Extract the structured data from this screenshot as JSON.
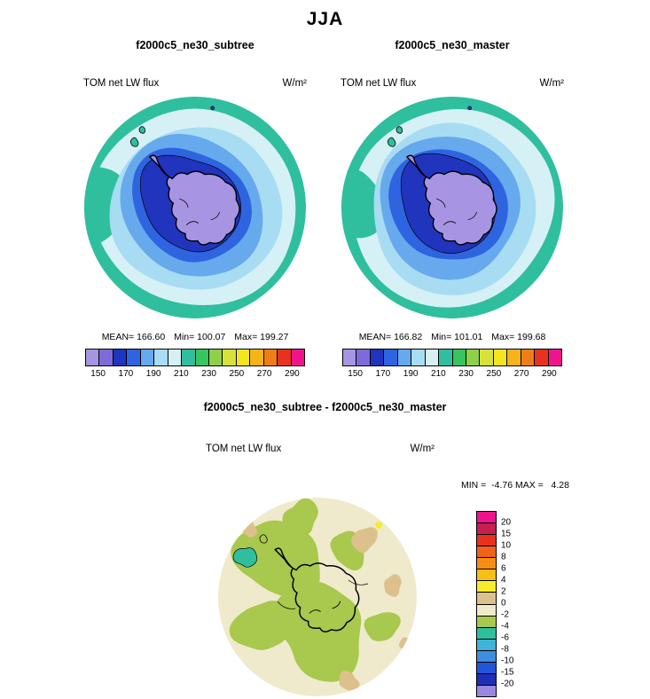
{
  "figure": {
    "title": "JJA"
  },
  "top_panels": [
    {
      "title": "f2000c5_ne30_subtree",
      "variable": "TOM net LW flux",
      "units": "W/m²",
      "stats": {
        "mean": "MEAN= 166.60",
        "min": "Min= 100.07",
        "max": "Max= 199.27"
      }
    },
    {
      "title": "f2000c5_ne30_master",
      "variable": "TOM net LW flux",
      "units": "W/m²",
      "stats": {
        "mean": "MEAN= 166.82",
        "min": "Min= 101.01",
        "max": "Max= 199.68"
      }
    }
  ],
  "top_colorbar": {
    "ticks": [
      "150",
      "170",
      "190",
      "210",
      "230",
      "250",
      "270",
      "290"
    ],
    "colors": [
      "#A795E3",
      "#7E6BD9",
      "#2134BE",
      "#2E64DF",
      "#66A9ED",
      "#A8DCF2",
      "#D6F1F6",
      "#2FBF9E",
      "#37C55F",
      "#8ED04A",
      "#D6E23A",
      "#F5E51E",
      "#F5B41A",
      "#F07E16",
      "#E8321F",
      "#F0148C"
    ]
  },
  "diff_panel": {
    "title": "f2000c5_ne30_subtree - f2000c5_ne30_master",
    "variable": "TOM net LW flux",
    "units": "W/m²",
    "minmax": "MIN =  -4.76 MAX =   4.28"
  },
  "diff_colorbar": {
    "labels": [
      "20",
      "15",
      "10",
      "8",
      "6",
      "4",
      "2",
      "0",
      "-2",
      "-4",
      "-6",
      "-8",
      "-10",
      "-15",
      "-20"
    ],
    "colors": [
      "#F0148C",
      "#C81E50",
      "#E8321F",
      "#F0611C",
      "#F58E14",
      "#F5C018",
      "#F5EC2E",
      "#DDC18C",
      "#F0EACC",
      "#A8C84E",
      "#2FBF9E",
      "#3FB4D8",
      "#3E8EE0",
      "#2255D8",
      "#1E2FB5",
      "#9B87E0"
    ]
  },
  "chart_data": [
    {
      "type": "heatmap",
      "subtype": "south-polar-filled-contour-map",
      "season": "JJA",
      "title": "f2000c5_ne30_subtree",
      "variable": "TOM net LW flux",
      "units": "W/m²",
      "stats": {
        "mean": 166.6,
        "min": 100.07,
        "max": 199.27
      },
      "colorbar_ticks": [
        150,
        170,
        190,
        210,
        230,
        250,
        270,
        290
      ],
      "legend_position": "below"
    },
    {
      "type": "heatmap",
      "subtype": "south-polar-filled-contour-map",
      "season": "JJA",
      "title": "f2000c5_ne30_master",
      "variable": "TOM net LW flux",
      "units": "W/m²",
      "stats": {
        "mean": 166.82,
        "min": 101.01,
        "max": 199.68
      },
      "colorbar_ticks": [
        150,
        170,
        190,
        210,
        230,
        250,
        270,
        290
      ],
      "legend_position": "below"
    },
    {
      "type": "heatmap",
      "subtype": "south-polar-filled-contour-map",
      "season": "JJA",
      "title": "f2000c5_ne30_subtree - f2000c5_ne30_master",
      "variable": "TOM net LW flux",
      "units": "W/m²",
      "stats": {
        "min": -4.76,
        "max": 4.28
      },
      "contour_levels": [
        -20,
        -15,
        -10,
        -8,
        -6,
        -4,
        -2,
        0,
        2,
        4,
        6,
        8,
        10,
        15,
        20
      ],
      "legend_position": "right"
    }
  ]
}
